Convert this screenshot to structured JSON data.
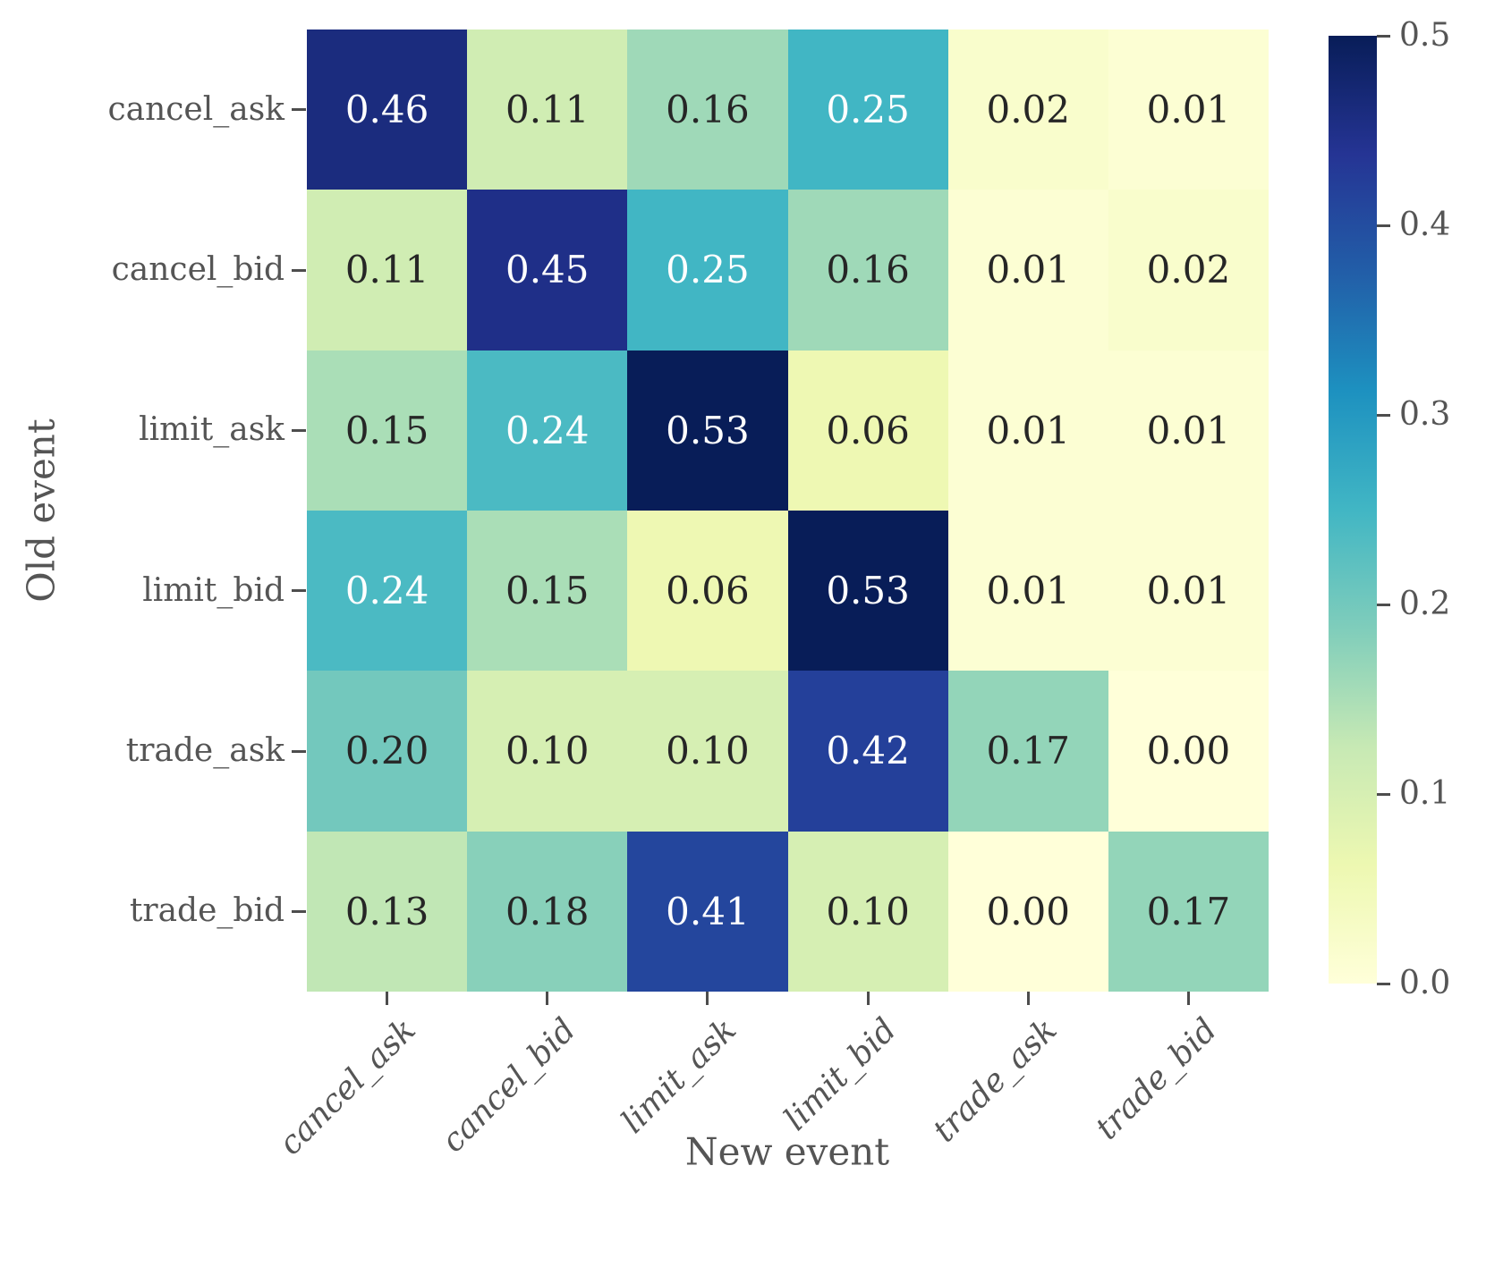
{
  "chart_data": {
    "type": "heatmap",
    "title": "",
    "xlabel": "New event",
    "ylabel": "Old event",
    "x_categories": [
      "cancel_ask",
      "cancel_bid",
      "limit_ask",
      "limit_bid",
      "trade_ask",
      "trade_bid"
    ],
    "y_categories": [
      "cancel_ask",
      "cancel_bid",
      "limit_ask",
      "limit_bid",
      "trade_ask",
      "trade_bid"
    ],
    "values": [
      [
        0.46,
        0.11,
        0.16,
        0.25,
        0.02,
        0.01
      ],
      [
        0.11,
        0.45,
        0.25,
        0.16,
        0.01,
        0.02
      ],
      [
        0.15,
        0.24,
        0.53,
        0.06,
        0.01,
        0.01
      ],
      [
        0.24,
        0.15,
        0.06,
        0.53,
        0.01,
        0.01
      ],
      [
        0.2,
        0.1,
        0.1,
        0.42,
        0.17,
        0.0
      ],
      [
        0.13,
        0.18,
        0.41,
        0.1,
        0.0,
        0.17
      ]
    ],
    "value_decimals": 2,
    "scale": {
      "vmin": 0.0,
      "vmax": 0.5
    },
    "colorbar_ticks": [
      "0.0",
      "0.1",
      "0.2",
      "0.3",
      "0.4",
      "0.5"
    ],
    "colorbar_position": "right",
    "colormap": {
      "name": "YlGnBu",
      "stops": [
        "#ffffd9",
        "#edf8b1",
        "#c7e9b4",
        "#7fcdbb",
        "#41b6c4",
        "#1d91c0",
        "#225ea8",
        "#253494",
        "#081d58"
      ]
    },
    "annotation_colors": {
      "light": "#ffffff",
      "dark": "#262626"
    },
    "axis_text_color": "#555555",
    "grid": false
  }
}
